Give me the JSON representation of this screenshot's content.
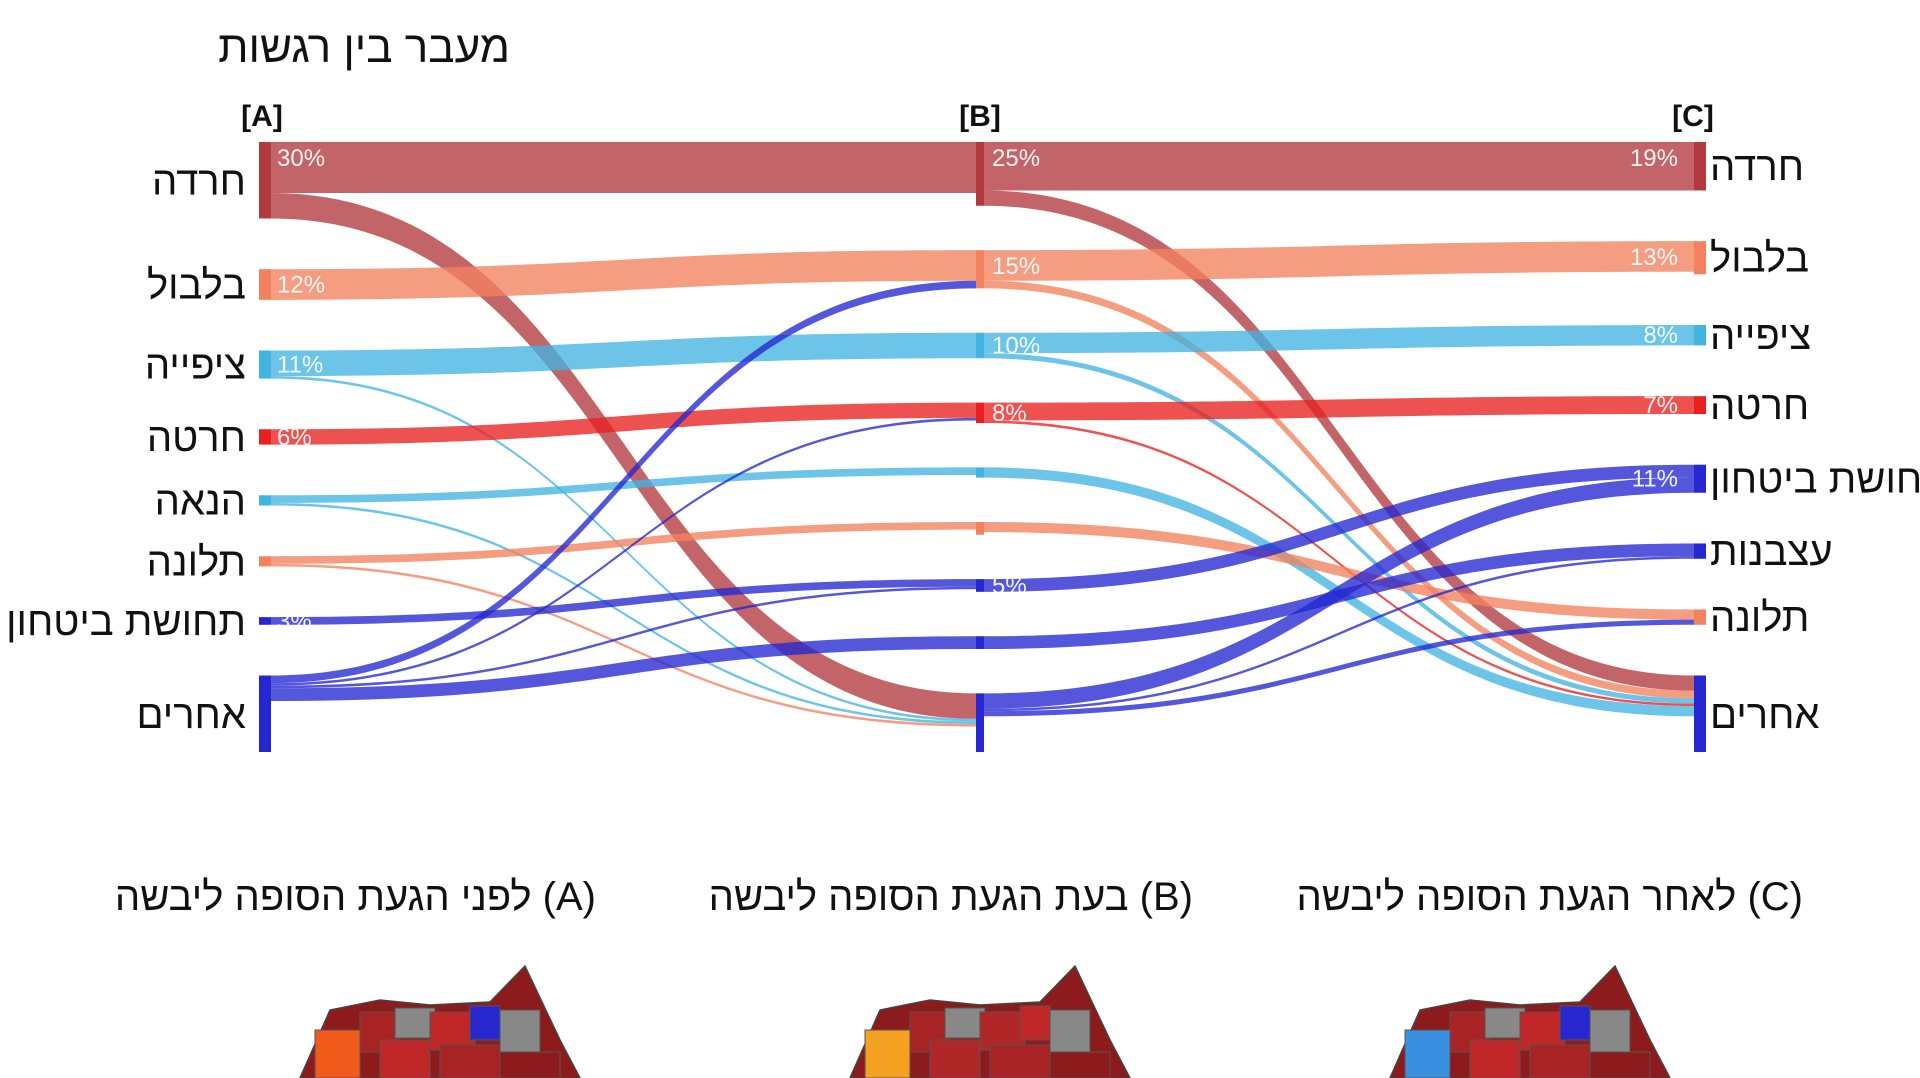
{
  "chart_data": {
    "type": "sankey",
    "title": "מעבר בין רגשות",
    "stages": [
      {
        "key": "A",
        "label": "[A]",
        "caption": "לפני הגעת הסופה ליבשה (A)"
      },
      {
        "key": "B",
        "label": "[B]",
        "caption": "בעת הגעת הסופה ליבשה (B)"
      },
      {
        "key": "C",
        "label": "[C]",
        "caption": "לאחר הגעת הסופה ליבשה (C)"
      }
    ],
    "categories": [
      {
        "key": "anxiety",
        "label": "חרדה",
        "color": "#b23a3e"
      },
      {
        "key": "confusion",
        "label": "בלבול",
        "color": "#f2825e"
      },
      {
        "key": "anticipation",
        "label": "ציפייה",
        "color": "#43b4e2"
      },
      {
        "key": "regret",
        "label": "חרטה",
        "color": "#e8201f"
      },
      {
        "key": "enjoyment",
        "label": "הנאה",
        "color": "#43b4e2"
      },
      {
        "key": "complaint",
        "label": "תלונה",
        "color": "#f2825e"
      },
      {
        "key": "security",
        "label": "תחושת ביטחון",
        "color": "#2427d2"
      },
      {
        "key": "sadness",
        "label": "עצבנות",
        "color": "#2427d2"
      },
      {
        "key": "others",
        "label": "אחרים",
        "color": "#2427d2"
      }
    ],
    "nodes": {
      "A": [
        {
          "cat": "anxiety",
          "value": 30,
          "pct": "30%"
        },
        {
          "cat": "confusion",
          "value": 12,
          "pct": "12%"
        },
        {
          "cat": "anticipation",
          "value": 11,
          "pct": "11%"
        },
        {
          "cat": "regret",
          "value": 6,
          "pct": "6%"
        },
        {
          "cat": "enjoyment",
          "value": 4,
          "pct": ""
        },
        {
          "cat": "complaint",
          "value": 4,
          "pct": ""
        },
        {
          "cat": "security",
          "value": 3,
          "pct": "3%"
        },
        {
          "cat": "others",
          "value": 30,
          "pct": ""
        }
      ],
      "B": [
        {
          "cat": "anxiety",
          "value": 25,
          "pct": "25%"
        },
        {
          "cat": "confusion",
          "value": 15,
          "pct": "15%"
        },
        {
          "cat": "anticipation",
          "value": 10,
          "pct": "10%"
        },
        {
          "cat": "regret",
          "value": 8,
          "pct": "8%"
        },
        {
          "cat": "enjoyment",
          "value": 4,
          "pct": ""
        },
        {
          "cat": "complaint",
          "value": 5,
          "pct": ""
        },
        {
          "cat": "security",
          "value": 5,
          "pct": "5%"
        },
        {
          "cat": "sadness",
          "value": 5,
          "pct": ""
        },
        {
          "cat": "others",
          "value": 23,
          "pct": ""
        }
      ],
      "C": [
        {
          "cat": "anxiety",
          "value": 19,
          "pct": "19%"
        },
        {
          "cat": "confusion",
          "value": 13,
          "pct": "13%"
        },
        {
          "cat": "anticipation",
          "value": 8,
          "pct": "8%"
        },
        {
          "cat": "regret",
          "value": 7,
          "pct": "7%"
        },
        {
          "cat": "security",
          "value": 11,
          "pct": "11%"
        },
        {
          "cat": "sadness",
          "value": 6,
          "pct": ""
        },
        {
          "cat": "complaint",
          "value": 6,
          "pct": ""
        },
        {
          "cat": "others",
          "value": 30,
          "pct": ""
        }
      ]
    },
    "links": [
      {
        "stage": 0,
        "from": "anxiety",
        "to": "anxiety",
        "value": 20
      },
      {
        "stage": 0,
        "from": "anxiety",
        "to": "others",
        "value": 10
      },
      {
        "stage": 0,
        "from": "confusion",
        "to": "confusion",
        "value": 12
      },
      {
        "stage": 0,
        "from": "anticipation",
        "to": "anticipation",
        "value": 10
      },
      {
        "stage": 0,
        "from": "anticipation",
        "to": "others",
        "value": 1
      },
      {
        "stage": 0,
        "from": "regret",
        "to": "regret",
        "value": 6
      },
      {
        "stage": 0,
        "from": "enjoyment",
        "to": "enjoyment",
        "value": 3
      },
      {
        "stage": 0,
        "from": "enjoyment",
        "to": "others",
        "value": 1
      },
      {
        "stage": 0,
        "from": "complaint",
        "to": "complaint",
        "value": 3
      },
      {
        "stage": 0,
        "from": "complaint",
        "to": "others",
        "value": 1
      },
      {
        "stage": 0,
        "from": "security",
        "to": "security",
        "value": 3
      },
      {
        "stage": 0,
        "from": "others",
        "to": "confusion",
        "value": 3
      },
      {
        "stage": 0,
        "from": "others",
        "to": "regret",
        "value": 1
      },
      {
        "stage": 0,
        "from": "others",
        "to": "security",
        "value": 1
      },
      {
        "stage": 0,
        "from": "others",
        "to": "sadness",
        "value": 5
      },
      {
        "stage": 1,
        "from": "anxiety",
        "to": "anxiety",
        "value": 19
      },
      {
        "stage": 1,
        "from": "anxiety",
        "to": "others",
        "value": 6
      },
      {
        "stage": 1,
        "from": "confusion",
        "to": "confusion",
        "value": 12
      },
      {
        "stage": 1,
        "from": "confusion",
        "to": "others",
        "value": 3
      },
      {
        "stage": 1,
        "from": "anticipation",
        "to": "anticipation",
        "value": 8
      },
      {
        "stage": 1,
        "from": "anticipation",
        "to": "others",
        "value": 2
      },
      {
        "stage": 1,
        "from": "regret",
        "to": "regret",
        "value": 7
      },
      {
        "stage": 1,
        "from": "regret",
        "to": "others",
        "value": 1
      },
      {
        "stage": 1,
        "from": "enjoyment",
        "to": "others",
        "value": 4
      },
      {
        "stage": 1,
        "from": "complaint",
        "to": "complaint",
        "value": 4
      },
      {
        "stage": 1,
        "from": "security",
        "to": "security",
        "value": 5
      },
      {
        "stage": 1,
        "from": "sadness",
        "to": "sadness",
        "value": 5
      },
      {
        "stage": 1,
        "from": "others",
        "to": "security",
        "value": 6
      },
      {
        "stage": 1,
        "from": "others",
        "to": "sadness",
        "value": 1
      },
      {
        "stage": 1,
        "from": "others",
        "to": "complaint",
        "value": 2
      }
    ]
  }
}
